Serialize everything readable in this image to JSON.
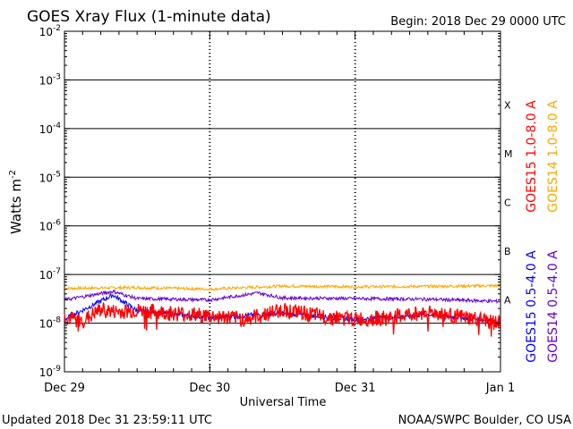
{
  "header": {
    "title": "GOES Xray Flux (1-minute data)",
    "begin": "Begin:  2018 Dec 29 0000 UTC"
  },
  "footer": {
    "updated": "Updated 2018 Dec 31 23:59:11 UTC",
    "credit": "NOAA/SWPC Boulder, CO USA"
  },
  "colors": {
    "goes15_long": "#ff0000",
    "goes14_long": "#ffa500",
    "goes15_short": "#0000ff",
    "goes14_short": "#6600cc",
    "grid": "#000000"
  },
  "chart_data": {
    "type": "line",
    "title": "GOES Xray Flux (1-minute data)",
    "xlabel": "Universal Time",
    "ylabel_base": "Watts m",
    "ylabel_sup": "-2",
    "yscale": "log",
    "ylim": [
      1e-09,
      0.01
    ],
    "xlim": [
      "2018-12-29",
      "2019-01-01"
    ],
    "x_ticks": [
      "Dec 29",
      "Dec 30",
      "Dec 31",
      "Jan 1"
    ],
    "y_ticks": [
      {
        "value": 0.01,
        "base": "10",
        "exp": "-2"
      },
      {
        "value": 0.001,
        "base": "10",
        "exp": "-3"
      },
      {
        "value": 0.0001,
        "base": "10",
        "exp": "-4"
      },
      {
        "value": 1e-05,
        "base": "10",
        "exp": "-5"
      },
      {
        "value": 1e-06,
        "base": "10",
        "exp": "-6"
      },
      {
        "value": 1e-07,
        "base": "10",
        "exp": "-7"
      },
      {
        "value": 1e-08,
        "base": "10",
        "exp": "-8"
      },
      {
        "value": 1e-09,
        "base": "10",
        "exp": "-9"
      }
    ],
    "flare_classes": [
      {
        "label": "X",
        "lower": 0.0001
      },
      {
        "label": "M",
        "lower": 1e-05
      },
      {
        "label": "C",
        "lower": 1e-06
      },
      {
        "label": "B",
        "lower": 1e-07
      },
      {
        "label": "A",
        "lower": 1e-08
      }
    ],
    "grid": true,
    "legend_position": "right",
    "series": [
      {
        "name": "GOES15 1.0-8.0 A",
        "color": "#ff0000",
        "x": [
          "Dec 29 00:00",
          "Dec 29 03:00",
          "Dec 29 06:00",
          "Dec 29 08:00",
          "Dec 29 12:00",
          "Dec 29 18:00",
          "Dec 30 00:00",
          "Dec 30 06:00",
          "Dec 30 12:00",
          "Dec 30 18:00",
          "Dec 31 00:00",
          "Dec 31 06:00",
          "Dec 31 12:00",
          "Dec 31 18:00",
          "Jan 1 00:00"
        ],
        "y": [
          1.3e-08,
          1.1e-08,
          1.9e-08,
          1.7e-08,
          1.8e-08,
          1.6e-08,
          1.4e-08,
          1.2e-08,
          1.9e-08,
          1.4e-08,
          1.2e-08,
          1.3e-08,
          1.7e-08,
          1.3e-08,
          1e-08
        ]
      },
      {
        "name": "GOES14 1.0-8.0 A",
        "color": "#ffa500",
        "x": [
          "Dec 29 00:00",
          "Dec 29 12:00",
          "Dec 30 00:00",
          "Dec 30 12:00",
          "Dec 31 00:00",
          "Dec 31 12:00",
          "Jan 1 00:00"
        ],
        "y": [
          5.2e-08,
          5.4e-08,
          5e-08,
          5.8e-08,
          5.6e-08,
          5.7e-08,
          5.9e-08
        ]
      },
      {
        "name": "GOES15 0.5-4.0 A",
        "color": "#0000ff",
        "x": [
          "Dec 29 00:00",
          "Dec 29 08:00",
          "Dec 29 12:00",
          "Dec 30 00:00",
          "Dec 30 12:00",
          "Dec 31 00:00",
          "Dec 31 12:00",
          "Jan 1 00:00"
        ],
        "y": [
          1.2e-08,
          3.8e-08,
          1.8e-08,
          1.3e-08,
          1.6e-08,
          1.2e-08,
          1.5e-08,
          1.1e-08
        ]
      },
      {
        "name": "GOES14 0.5-4.0 A",
        "color": "#6600cc",
        "x": [
          "Dec 29 00:00",
          "Dec 29 08:00",
          "Dec 29 12:00",
          "Dec 30 00:00",
          "Dec 30 08:00",
          "Dec 30 12:00",
          "Dec 31 00:00",
          "Dec 31 12:00",
          "Jan 1 00:00"
        ],
        "y": [
          3e-08,
          4.5e-08,
          3.2e-08,
          3e-08,
          4.2e-08,
          3.3e-08,
          3.2e-08,
          3.1e-08,
          2.8e-08
        ]
      }
    ]
  }
}
